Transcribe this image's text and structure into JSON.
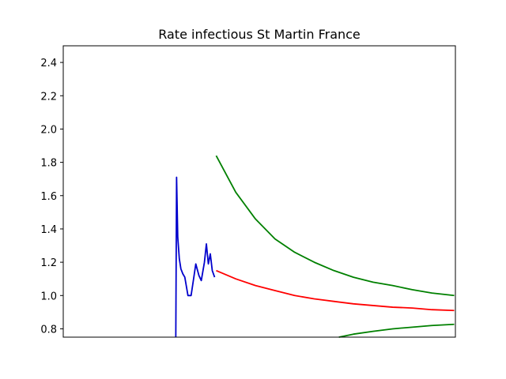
{
  "chart_data": {
    "type": "line",
    "title": "Rate infectious St Martin France",
    "xlabel": "",
    "ylabel": "",
    "ylim": [
      0.75,
      2.5
    ],
    "xlim": [
      0,
      100
    ],
    "grid": false,
    "yticks": [
      0.8,
      1.0,
      1.2,
      1.4,
      1.6,
      1.8,
      2.0,
      2.2,
      2.4
    ],
    "ytick_labels": [
      "0.8",
      "1.0",
      "1.2",
      "1.4",
      "1.6",
      "1.8",
      "2.0",
      "2.2",
      "2.4"
    ],
    "series": [
      {
        "color": "#0000cc",
        "x": [
          28.7,
          28.9,
          29.2,
          29.6,
          30.0,
          30.5,
          31.0,
          31.8,
          32.6,
          33.3,
          33.8,
          34.6,
          35.2,
          36.0,
          36.5,
          37.0,
          37.5,
          38.0,
          38.6
        ],
        "y": [
          0.75,
          1.71,
          1.35,
          1.22,
          1.16,
          1.13,
          1.11,
          1.0,
          1.0,
          1.11,
          1.19,
          1.12,
          1.09,
          1.2,
          1.31,
          1.19,
          1.25,
          1.15,
          1.11
        ]
      },
      {
        "color": "#ff0000",
        "x": [
          39,
          44,
          49,
          54,
          59,
          64,
          69,
          74,
          79,
          84,
          89,
          94,
          99.7
        ],
        "y": [
          1.15,
          1.1,
          1.06,
          1.03,
          1.0,
          0.98,
          0.965,
          0.95,
          0.94,
          0.93,
          0.925,
          0.915,
          0.91
        ]
      },
      {
        "color": "#008000",
        "x": [
          39,
          44,
          49,
          54,
          59,
          64,
          69,
          74,
          79,
          84,
          89,
          94,
          99.7
        ],
        "y": [
          1.84,
          1.62,
          1.46,
          1.34,
          1.26,
          1.2,
          1.15,
          1.11,
          1.08,
          1.06,
          1.035,
          1.015,
          1.0
        ]
      },
      {
        "color": "#008000",
        "x": [
          70.3,
          74,
          79,
          84,
          89,
          94,
          99.7
        ],
        "y": [
          0.75,
          0.768,
          0.785,
          0.8,
          0.81,
          0.82,
          0.827
        ]
      }
    ]
  }
}
